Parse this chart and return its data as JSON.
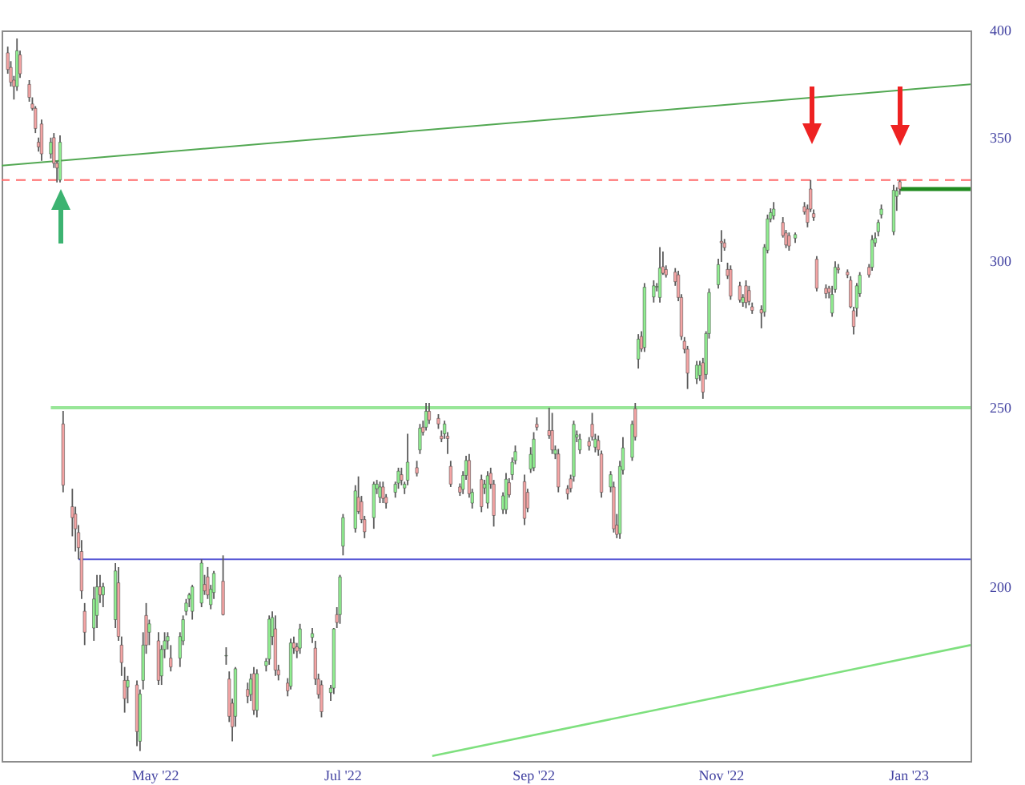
{
  "chart_data": {
    "type": "candlestick",
    "log": true,
    "xlim": [
      "2022-03-12",
      "2023-01-21"
    ],
    "ylim": [
      161,
      400
    ],
    "xticks": [
      {
        "value": "2022-05-01",
        "label": "May '22"
      },
      {
        "value": "2022-07-01",
        "label": "Jul '22"
      },
      {
        "value": "2022-09-01",
        "label": "Sep '22"
      },
      {
        "value": "2022-11-01",
        "label": "Nov '22"
      },
      {
        "value": "2023-01-01",
        "label": "Jan '23"
      }
    ],
    "yticks": [
      200,
      250,
      300,
      350,
      400
    ],
    "x": [
      "2022-03-14",
      "2022-03-15",
      "2022-03-16",
      "2022-03-17",
      "2022-03-18",
      "2022-03-21",
      "2022-03-22",
      "2022-03-23",
      "2022-03-24",
      "2022-03-25",
      "2022-03-28",
      "2022-03-29",
      "2022-03-30",
      "2022-03-31",
      "2022-04-01",
      "2022-04-04",
      "2022-04-05",
      "2022-04-06",
      "2022-04-07",
      "2022-04-08",
      "2022-04-11",
      "2022-04-12",
      "2022-04-13",
      "2022-04-14",
      "2022-04-18",
      "2022-04-19",
      "2022-04-20",
      "2022-04-21",
      "2022-04-22",
      "2022-04-25",
      "2022-04-26",
      "2022-04-27",
      "2022-04-28",
      "2022-04-29",
      "2022-05-02",
      "2022-05-03",
      "2022-05-04",
      "2022-05-05",
      "2022-05-06",
      "2022-05-09",
      "2022-05-10",
      "2022-05-11",
      "2022-05-12",
      "2022-05-13",
      "2022-05-16",
      "2022-05-17",
      "2022-05-18",
      "2022-05-19",
      "2022-05-20",
      "2022-05-23",
      "2022-05-24",
      "2022-05-25",
      "2022-05-26",
      "2022-05-27",
      "2022-05-31",
      "2022-06-01",
      "2022-06-02",
      "2022-06-03",
      "2022-06-06",
      "2022-06-07",
      "2022-06-08",
      "2022-06-09",
      "2022-06-10",
      "2022-06-13",
      "2022-06-14",
      "2022-06-15",
      "2022-06-16",
      "2022-06-17",
      "2022-06-21",
      "2022-06-22",
      "2022-06-23",
      "2022-06-24",
      "2022-06-27",
      "2022-06-28",
      "2022-06-29",
      "2022-06-30",
      "2022-07-01",
      "2022-07-05",
      "2022-07-06",
      "2022-07-07",
      "2022-07-08",
      "2022-07-11",
      "2022-07-12",
      "2022-07-13",
      "2022-07-14",
      "2022-07-15",
      "2022-07-18",
      "2022-07-19",
      "2022-07-20",
      "2022-07-21",
      "2022-07-22",
      "2022-07-25",
      "2022-07-26",
      "2022-07-27",
      "2022-07-28",
      "2022-07-29",
      "2022-08-01",
      "2022-08-02",
      "2022-08-03",
      "2022-08-04",
      "2022-08-05",
      "2022-08-08",
      "2022-08-09",
      "2022-08-10",
      "2022-08-11",
      "2022-08-12",
      "2022-08-15",
      "2022-08-16",
      "2022-08-17",
      "2022-08-18",
      "2022-08-19",
      "2022-08-22",
      "2022-08-23",
      "2022-08-24",
      "2022-08-25",
      "2022-08-26",
      "2022-08-29",
      "2022-08-30",
      "2022-08-31",
      "2022-09-01",
      "2022-09-02",
      "2022-09-06",
      "2022-09-07",
      "2022-09-08",
      "2022-09-09",
      "2022-09-12",
      "2022-09-13",
      "2022-09-14",
      "2022-09-15",
      "2022-09-16",
      "2022-09-19",
      "2022-09-20",
      "2022-09-21",
      "2022-09-22",
      "2022-09-23",
      "2022-09-26",
      "2022-09-27",
      "2022-09-28",
      "2022-09-29",
      "2022-09-30",
      "2022-10-03",
      "2022-10-04",
      "2022-10-05",
      "2022-10-06",
      "2022-10-07",
      "2022-10-10",
      "2022-10-11",
      "2022-10-12",
      "2022-10-13",
      "2022-10-14",
      "2022-10-17",
      "2022-10-18",
      "2022-10-19",
      "2022-10-20",
      "2022-10-21",
      "2022-10-24",
      "2022-10-25",
      "2022-10-26",
      "2022-10-27",
      "2022-10-28",
      "2022-10-31",
      "2022-11-01",
      "2022-11-02",
      "2022-11-03",
      "2022-11-04",
      "2022-11-07",
      "2022-11-08",
      "2022-11-09",
      "2022-11-10",
      "2022-11-11",
      "2022-11-14",
      "2022-11-15",
      "2022-11-16",
      "2022-11-17",
      "2022-11-18",
      "2022-11-21",
      "2022-11-22",
      "2022-11-23",
      "2022-11-25",
      "2022-11-28",
      "2022-11-29",
      "2022-11-30",
      "2022-12-01",
      "2022-12-02",
      "2022-12-05",
      "2022-12-06",
      "2022-12-07",
      "2022-12-08",
      "2022-12-09",
      "2022-12-12",
      "2022-12-13",
      "2022-12-14",
      "2022-12-15",
      "2022-12-16",
      "2022-12-19",
      "2022-12-20",
      "2022-12-21",
      "2022-12-22",
      "2022-12-23",
      "2022-12-27",
      "2022-12-28",
      "2022-12-29"
    ],
    "ohlc": [
      [
        389,
        392,
        379,
        381
      ],
      [
        382,
        385,
        373,
        375
      ],
      [
        376,
        378,
        367,
        373
      ],
      [
        373,
        396,
        371,
        390
      ],
      [
        388,
        390,
        377,
        379
      ],
      [
        374,
        376,
        366,
        368
      ],
      [
        365,
        368,
        362,
        363
      ],
      [
        363,
        364,
        352,
        354
      ],
      [
        348,
        350,
        344,
        346
      ],
      [
        356,
        358,
        340,
        343
      ],
      [
        343,
        350,
        341,
        348
      ],
      [
        350,
        352,
        337,
        339
      ],
      [
        339,
        340,
        331,
        337
      ],
      [
        332,
        351,
        331,
        348
      ],
      [
        245,
        249,
        225,
        227
      ],
      [
        221,
        226,
        213,
        218
      ],
      [
        219,
        221,
        209,
        215
      ],
      [
        214,
        216,
        207,
        210
      ],
      [
        209,
        212,
        197,
        199
      ],
      [
        194,
        196,
        186,
        189
      ],
      [
        190,
        200,
        187,
        197
      ],
      [
        193,
        203,
        190,
        200
      ],
      [
        200,
        203,
        196,
        198
      ],
      [
        198,
        201,
        195,
        200
      ],
      [
        192,
        206,
        190,
        204
      ],
      [
        201,
        205,
        187,
        188
      ],
      [
        186,
        188,
        179,
        182
      ],
      [
        178,
        181,
        171,
        174
      ],
      [
        176.5,
        179,
        173,
        178
      ],
      [
        177,
        178,
        164,
        167
      ],
      [
        165,
        176,
        163,
        175
      ],
      [
        178,
        189,
        176,
        186
      ],
      [
        193,
        196,
        184,
        186
      ],
      [
        189,
        192,
        186,
        191
      ],
      [
        187,
        189,
        177,
        178
      ],
      [
        179,
        186,
        177,
        185
      ],
      [
        185,
        189,
        183,
        187
      ],
      [
        187,
        189,
        185,
        188
      ],
      [
        183,
        186,
        180,
        181
      ],
      [
        183,
        189,
        181,
        188
      ],
      [
        187,
        193,
        186,
        192
      ],
      [
        194,
        197,
        193,
        196
      ],
      [
        197,
        198.5,
        195,
        198
      ],
      [
        194,
        200.5,
        192,
        200
      ],
      [
        196,
        207,
        195,
        206
      ],
      [
        200.6,
        203,
        198,
        199
      ],
      [
        202.5,
        205,
        197,
        198
      ],
      [
        195.6,
        200.5,
        194.5,
        199.4
      ],
      [
        198.6,
        204,
        197,
        203.4
      ],
      [
        201.4,
        208,
        193,
        193.2
      ],
      [
        183.5,
        185.5,
        181.5,
        183.6
      ],
      [
        178.3,
        180,
        169,
        170.2
      ],
      [
        173,
        174,
        165,
        168
      ],
      [
        170.2,
        181,
        168,
        180.6
      ],
      [
        176,
        177.5,
        173,
        174.5
      ],
      [
        174.9,
        179.5,
        173.5,
        178.3
      ],
      [
        179.5,
        181,
        170.5,
        171.5
      ],
      [
        171.5,
        180.5,
        170,
        179.5
      ],
      [
        181.3,
        183,
        180,
        182.3
      ],
      [
        182.8,
        193,
        181.5,
        192.1
      ],
      [
        188,
        194,
        186,
        192.5
      ],
      [
        189.8,
        193,
        179,
        180.3
      ],
      [
        180.3,
        181.5,
        178,
        179.2
      ],
      [
        177.4,
        178.5,
        174.5,
        175.7
      ],
      [
        176.7,
        187.5,
        176,
        186.5
      ],
      [
        186.5,
        188,
        184,
        185.3
      ],
      [
        185.6,
        186.5,
        183,
        184.6
      ],
      [
        185.3,
        191,
        184,
        189.8
      ],
      [
        187.8,
        190,
        186.5,
        188.7
      ],
      [
        185.3,
        187,
        177,
        178.3
      ],
      [
        178.3,
        179.5,
        174,
        174.9
      ],
      [
        177,
        178,
        170,
        171.2
      ],
      [
        175.3,
        177,
        173.5,
        176.3
      ],
      [
        176.3,
        190,
        175,
        189.8
      ],
      [
        193.2,
        195,
        190,
        191.3
      ],
      [
        193.2,
        203,
        191,
        202.5
      ],
      [
        210.4,
        219,
        208,
        218
      ],
      [
        215.1,
        227,
        214,
        225.4
      ],
      [
        223.6,
        229.5,
        219,
        219.7
      ],
      [
        222.4,
        224,
        216.5,
        217.5
      ],
      [
        217.5,
        218.5,
        212.5,
        214.2
      ],
      [
        218,
        228,
        215,
        227.3
      ],
      [
        226,
        228.5,
        224.5,
        227.3
      ],
      [
        223.6,
        228,
        222,
        226.5
      ],
      [
        226.5,
        228,
        222,
        223.3
      ],
      [
        223.6,
        224.5,
        220.5,
        222
      ],
      [
        225,
        228,
        223.5,
        227.3
      ],
      [
        227.6,
        232,
        226,
        231
      ],
      [
        230,
        232,
        227,
        228.4
      ],
      [
        226.2,
        228,
        224.5,
        227.3
      ],
      [
        228.4,
        242,
        227,
        233.6
      ],
      [
        232,
        234,
        229.5,
        230.4
      ],
      [
        237.2,
        245,
        236,
        243.7
      ],
      [
        244,
        246,
        241.5,
        242.5
      ],
      [
        244,
        251.5,
        243,
        248.9
      ],
      [
        248.9,
        251.5,
        245,
        246.2
      ],
      [
        246.7,
        248,
        243.5,
        245
      ],
      [
        241.3,
        243,
        239.5,
        240.5
      ],
      [
        242,
        246,
        240.5,
        245
      ],
      [
        241.3,
        242.5,
        236,
        240.6
      ],
      [
        232.4,
        234,
        226.5,
        227.3
      ],
      [
        226.5,
        227.5,
        224,
        225
      ],
      [
        225.8,
        231,
        224.5,
        229.8
      ],
      [
        229.8,
        235.5,
        228.5,
        234.1
      ],
      [
        234.1,
        236,
        223.5,
        224.6
      ],
      [
        222,
        226,
        220.5,
        225
      ],
      [
        228.6,
        230,
        219.5,
        221
      ],
      [
        226.2,
        228.5,
        224.5,
        227.3
      ],
      [
        222,
        231,
        220.5,
        229.7
      ],
      [
        230.4,
        232,
        226,
        227.3
      ],
      [
        227.3,
        228.5,
        215.6,
        218.6
      ],
      [
        220.2,
        225,
        219,
        224
      ],
      [
        220.2,
        230.5,
        219,
        228.7
      ],
      [
        227.7,
        229,
        223.5,
        224.3
      ],
      [
        230,
        235,
        228.5,
        233.6
      ],
      [
        234.1,
        238.5,
        233,
        236.7
      ],
      [
        228,
        230,
        216,
        217.8
      ],
      [
        225,
        226,
        219.5,
        220.6
      ],
      [
        231.6,
        238,
        230.5,
        235.9
      ],
      [
        232,
        242.5,
        231,
        240.4
      ],
      [
        244.9,
        247,
        243,
        244
      ],
      [
        243,
        250,
        240.5,
        241.5
      ],
      [
        243,
        248.4,
        236,
        237.2
      ],
      [
        236,
        238.5,
        234.5,
        237.2
      ],
      [
        236,
        237.5,
        225,
        226.5
      ],
      [
        226,
        227,
        223,
        224.6
      ],
      [
        228.8,
        230,
        225,
        226.1
      ],
      [
        229.5,
        246,
        228,
        244.9
      ],
      [
        241,
        243,
        239.5,
        241.7
      ],
      [
        237.2,
        242,
        236,
        240.4
      ],
      [
        239.7,
        241,
        237,
        238.3
      ],
      [
        244.9,
        248.4,
        240,
        241.1
      ],
      [
        238,
        242,
        236.5,
        240.4
      ],
      [
        240,
        241.5,
        235.5,
        237.2
      ],
      [
        236,
        237,
        223.5,
        225
      ],
      [
        226.5,
        231,
        225,
        230
      ],
      [
        226.5,
        228,
        214,
        215
      ],
      [
        216,
        219,
        212.5,
        213.5
      ],
      [
        213.7,
        234,
        212.3,
        232.4
      ],
      [
        231.3,
        241,
        230,
        237.8
      ],
      [
        235,
        246,
        234,
        244.9
      ],
      [
        249.7,
        251.5,
        240,
        241.1
      ],
      [
        265.6,
        274,
        262.5,
        272.3
      ],
      [
        273.2,
        275,
        268,
        269
      ],
      [
        269.5,
        292,
        268,
        290.5
      ],
      [
        287,
        293,
        285,
        291
      ],
      [
        290.5,
        292,
        289,
        290.8
      ],
      [
        286.8,
        305.4,
        285,
        297.5
      ],
      [
        298,
        303.7,
        295,
        295.6
      ],
      [
        297,
        298.5,
        294,
        295
      ],
      [
        296,
        297.5,
        291,
        292.5
      ],
      [
        295,
        296.5,
        285.5,
        286.8
      ],
      [
        286.8,
        288,
        272,
        273.2
      ],
      [
        271.6,
        273,
        267.5,
        268.9
      ],
      [
        268.9,
        270,
        255.9,
        261
      ],
      [
        259.2,
        265,
        257.5,
        263.6
      ],
      [
        260.3,
        265,
        258.5,
        263.6
      ],
      [
        264.4,
        266,
        252.8,
        254.9
      ],
      [
        260.6,
        275,
        259,
        274.2
      ],
      [
        274.2,
        290,
        272.5,
        288.6
      ],
      [
        291.4,
        301,
        290,
        298.8
      ],
      [
        307.6,
        311.9,
        299.8,
        307
      ],
      [
        307,
        308.5,
        304,
        305.2
      ],
      [
        297,
        299.5,
        293.5,
        294.7
      ],
      [
        297,
        298.5,
        286,
        287.3
      ],
      [
        291,
        292.5,
        285,
        285.9
      ],
      [
        285,
        288,
        283.5,
        286.8
      ],
      [
        291,
        293,
        283,
        285
      ],
      [
        289.3,
        291,
        284,
        285.4
      ],
      [
        283.5,
        285,
        281,
        282.2
      ],
      [
        282.5,
        284,
        276,
        281.3
      ],
      [
        281.7,
        306.5,
        280,
        305.3
      ],
      [
        304.2,
        318,
        303,
        316.3
      ],
      [
        316.3,
        320.5,
        315,
        318.8
      ],
      [
        317.5,
        323,
        316,
        320.2
      ],
      [
        314.9,
        317,
        309,
        309.8
      ],
      [
        310.8,
        312,
        305,
        306.2
      ],
      [
        309.8,
        311,
        304,
        305.8
      ],
      [
        308.8,
        311,
        307,
        310.2
      ],
      [
        321.2,
        323,
        318,
        319.1
      ],
      [
        320.2,
        322,
        313,
        314.9
      ],
      [
        328.3,
        332,
        319,
        320.2
      ],
      [
        318.4,
        320,
        315.5,
        316.9
      ],
      [
        300.8,
        302,
        289,
        290.1
      ],
      [
        290.1,
        291.5,
        286.5,
        288.2
      ],
      [
        290.1,
        291,
        286.5,
        288.6
      ],
      [
        281.3,
        291,
        280,
        287.9
      ],
      [
        289.7,
        300,
        288.5,
        297.8
      ],
      [
        297.5,
        299,
        295.5,
        296.9
      ],
      [
        296,
        297,
        293.8,
        295
      ],
      [
        293,
        294.5,
        283,
        283.5
      ],
      [
        282.1,
        283.5,
        273.9,
        276.6
      ],
      [
        283,
        292,
        280,
        291
      ],
      [
        288.2,
        296,
        287,
        294.9
      ],
      [
        297.8,
        299,
        294,
        295
      ],
      [
        297.8,
        310,
        296.5,
        308.2
      ],
      [
        307,
        311,
        305.5,
        308.8
      ],
      [
        311.3,
        316,
        309.5,
        314.9
      ],
      [
        318,
        322,
        316.5,
        320.2
      ],
      [
        311.3,
        330,
        310,
        327.8
      ],
      [
        325.3,
        329,
        319.5,
        327.6
      ],
      [
        331.3,
        332,
        326,
        328.3
      ]
    ],
    "colors": [
      "#f4a4a4",
      "#f4a4a4",
      "#f4a4a4",
      "#90ee90",
      "#f4a4a4",
      "#f4a4a4",
      "#f4a4a4",
      "#f4a4a4",
      "#f4a4a4",
      "#f4a4a4",
      "#90ee90",
      "#f4a4a4",
      "#f4a4a4",
      "#90ee90",
      "#f4a4a4",
      "#f4a4a4",
      "#f4a4a4",
      "#f4a4a4",
      "#f4a4a4",
      "#f4a4a4",
      "#90ee90",
      "#90ee90",
      "#f4a4a4",
      "#90ee90",
      "#90ee90",
      "#f4a4a4",
      "#f4a4a4",
      "#f4a4a4",
      "#90ee90",
      "#f4a4a4",
      "#90ee90",
      "#90ee90",
      "#f4a4a4",
      "#90ee90",
      "#f4a4a4",
      "#90ee90",
      "#90ee90",
      "#90ee90",
      "#f4a4a4",
      "#90ee90",
      "#90ee90",
      "#90ee90",
      "#90ee90",
      "#90ee90",
      "#90ee90",
      "#f4a4a4",
      "#f4a4a4",
      "#90ee90",
      "#90ee90",
      "#f4a4a4",
      "#90ee90",
      "#f4a4a4",
      "#f4a4a4",
      "#90ee90",
      "#f4a4a4",
      "#90ee90",
      "#f4a4a4",
      "#90ee90",
      "#90ee90",
      "#90ee90",
      "#90ee90",
      "#f4a4a4",
      "#f4a4a4",
      "#f4a4a4",
      "#90ee90",
      "#f4a4a4",
      "#f4a4a4",
      "#90ee90",
      "#90ee90",
      "#f4a4a4",
      "#f4a4a4",
      "#f4a4a4",
      "#90ee90",
      "#90ee90",
      "#f4a4a4",
      "#90ee90",
      "#90ee90",
      "#90ee90",
      "#f4a4a4",
      "#f4a4a4",
      "#f4a4a4",
      "#90ee90",
      "#90ee90",
      "#90ee90",
      "#f4a4a4",
      "#f4a4a4",
      "#90ee90",
      "#90ee90",
      "#f4a4a4",
      "#90ee90",
      "#90ee90",
      "#f4a4a4",
      "#90ee90",
      "#f4a4a4",
      "#90ee90",
      "#f4a4a4",
      "#f4a4a4",
      "#f4a4a4",
      "#90ee90",
      "#f4a4a4",
      "#f4a4a4",
      "#f4a4a4",
      "#90ee90",
      "#90ee90",
      "#f4a4a4",
      "#90ee90",
      "#f4a4a4",
      "#90ee90",
      "#90ee90",
      "#f4a4a4",
      "#f4a4a4",
      "#90ee90",
      "#90ee90",
      "#f4a4a4",
      "#90ee90",
      "#90ee90",
      "#f4a4a4",
      "#f4a4a4",
      "#90ee90",
      "#90ee90",
      "#f4a4a4",
      "#f4a4a4",
      "#f4a4a4",
      "#90ee90",
      "#f4a4a4",
      "#f4a4a4",
      "#f4a4a4",
      "#90ee90",
      "#90ee90",
      "#90ee90",
      "#f4a4a4",
      "#f4a4a4",
      "#90ee90",
      "#f4a4a4",
      "#f4a4a4",
      "#90ee90",
      "#f4a4a4",
      "#f4a4a4",
      "#90ee90",
      "#90ee90",
      "#90ee90",
      "#f4a4a4",
      "#90ee90",
      "#f4a4a4",
      "#90ee90",
      "#90ee90",
      "#90ee90",
      "#90ee90",
      "#f4a4a4",
      "#f4a4a4",
      "#f4a4a4",
      "#f4a4a4",
      "#f4a4a4",
      "#f4a4a4",
      "#f4a4a4",
      "#90ee90",
      "#90ee90",
      "#f4a4a4",
      "#90ee90",
      "#90ee90",
      "#90ee90",
      "#f4a4a4",
      "#f4a4a4",
      "#f4a4a4",
      "#f4a4a4",
      "#f4a4a4",
      "#90ee90",
      "#f4a4a4",
      "#f4a4a4",
      "#f4a4a4",
      "#f4a4a4",
      "#90ee90",
      "#90ee90",
      "#90ee90",
      "#90ee90",
      "#f4a4a4",
      "#f4a4a4",
      "#f4a4a4",
      "#90ee90",
      "#f4a4a4",
      "#f4a4a4",
      "#f4a4a4",
      "#f4a4a4",
      "#f4a4a4",
      "#f4a4a4",
      "#f4a4a4",
      "#90ee90",
      "#90ee90",
      "#f4a4a4",
      "#f4a4a4",
      "#f4a4a4",
      "#f4a4a4",
      "#90ee90",
      "#90ee90",
      "#f4a4a4",
      "#90ee90",
      "#90ee90",
      "#90ee90",
      "#90ee90",
      "#90ee90",
      "#90ee90",
      "#f4a4a4"
    ],
    "series": [
      {
        "type": "line",
        "color": "#52a852",
        "x": [
          "2022-03-12",
          "2023-01-21"
        ],
        "values": [
          338,
          374
        ]
      },
      {
        "type": "line",
        "color": "#98e698",
        "x": [
          "2022-03-28",
          "2023-01-21"
        ],
        "values": [
          250,
          250
        ]
      },
      {
        "type": "line",
        "color": "#5a5ad6",
        "x": [
          "2022-04-06",
          "2023-01-21"
        ],
        "values": [
          207,
          207
        ]
      },
      {
        "type": "line",
        "color": "#7ee07e",
        "x": [
          "2022-07-30",
          "2023-01-21"
        ],
        "values": [
          162,
          186
        ]
      },
      {
        "type": "line",
        "color": "#1f8a1f",
        "x": [
          "2022-12-29",
          "2023-01-21"
        ],
        "values": [
          328.3,
          328.3
        ]
      }
    ],
    "ref_lines": [
      {
        "axis": "y",
        "value": 332,
        "color": "#ff6b6b",
        "line_style": "dashed"
      }
    ]
  }
}
